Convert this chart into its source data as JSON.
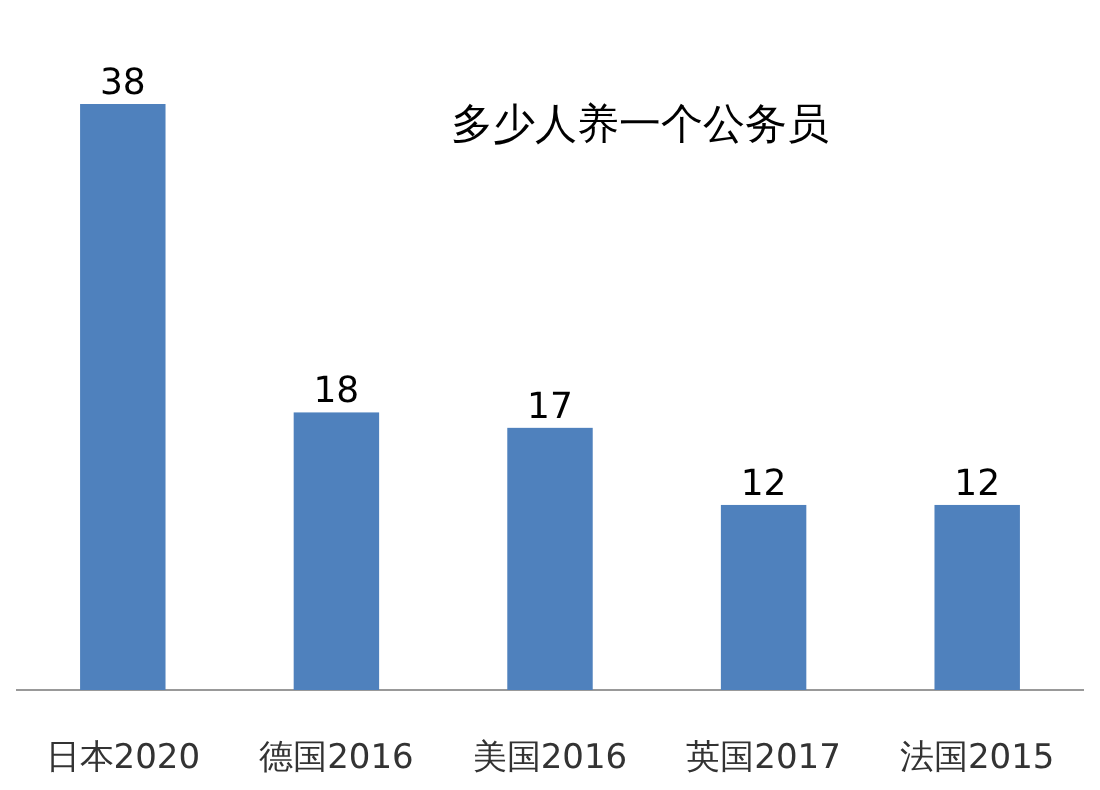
{
  "chart_data": {
    "type": "bar",
    "title": "多少人养一个公务员",
    "categories": [
      "日本2020",
      "德国2016",
      "美国2016",
      "英国2017",
      "法国2015"
    ],
    "values": [
      38,
      18,
      17,
      12,
      12
    ],
    "color": "#4f81bd",
    "data_labels": true
  }
}
